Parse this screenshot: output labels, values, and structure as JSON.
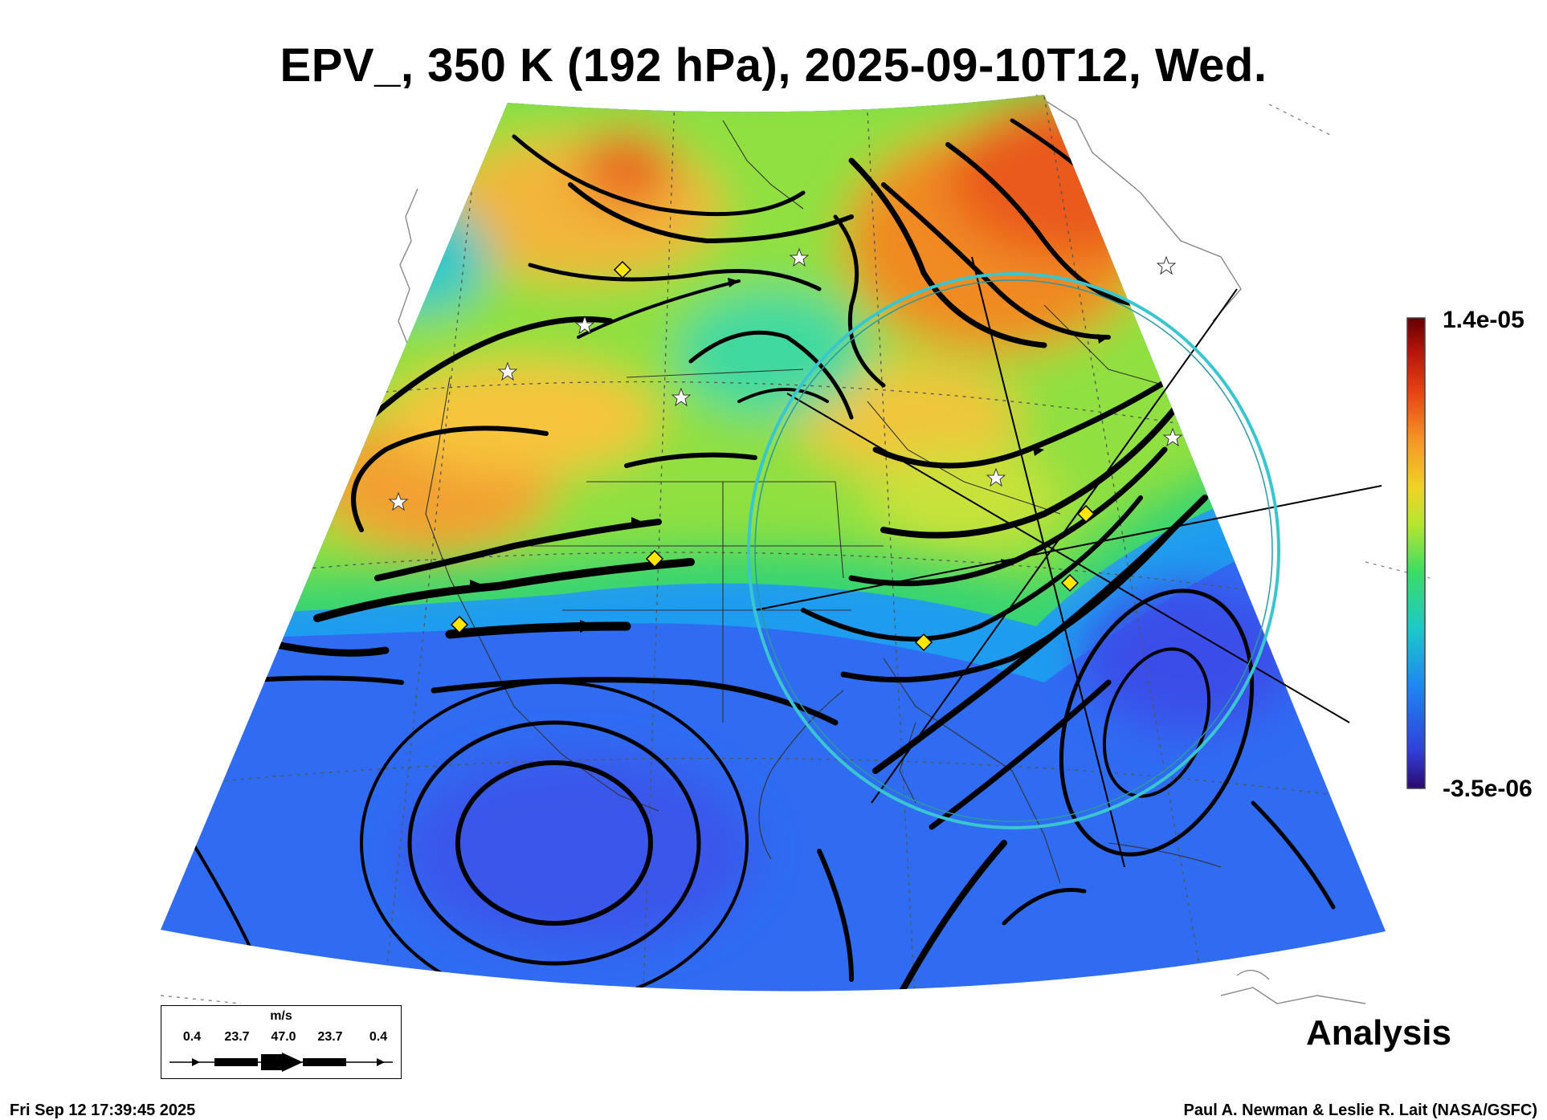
{
  "title": "EPV_, 350 K (192 hPa), 2025-09-10T12, Wed.",
  "colorbar": {
    "max_label": "1.4e-05",
    "min_label": "-3.5e-06",
    "colors": [
      "#2b0a6e",
      "#3040d8",
      "#1e88f0",
      "#1ec8c8",
      "#3cdc64",
      "#b4e632",
      "#f0d228",
      "#f59628",
      "#e64614",
      "#b4140a",
      "#640000"
    ]
  },
  "legend": {
    "unit": "m/s",
    "ticks": [
      "0.4",
      "23.7",
      "47.0",
      "23.7",
      "0.4"
    ]
  },
  "stamp": "Analysis",
  "footer": {
    "timestamp": "Fri Sep 12 17:39:45 2025",
    "credit": "Paul A. Newman & Leslie R. Lait (NASA/GSFC)"
  },
  "markers": {
    "diamond_color": "#ffe600",
    "star_color": "#ffffff",
    "ring_color": "#39c6cf"
  }
}
